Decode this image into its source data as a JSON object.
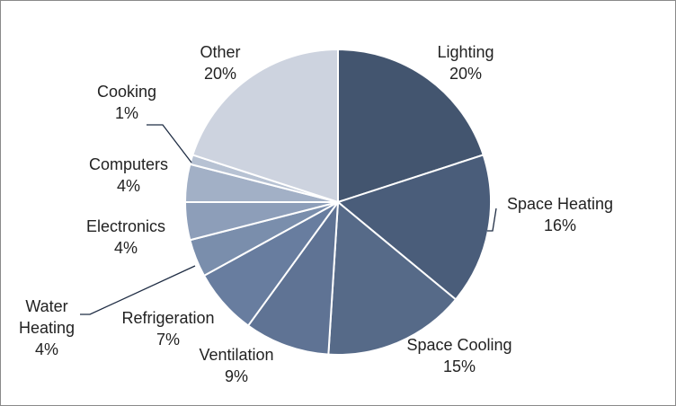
{
  "chart_data": {
    "type": "pie",
    "title": "",
    "slices": [
      {
        "name": "Lighting",
        "value": 20,
        "label": "20%",
        "color": "#43556f"
      },
      {
        "name": "Space Heating",
        "value": 16,
        "label": "16%",
        "color": "#4a5d7a"
      },
      {
        "name": "Space Cooling",
        "value": 15,
        "label": "15%",
        "color": "#566a88"
      },
      {
        "name": "Ventilation",
        "value": 9,
        "label": "9%",
        "color": "#5f7394"
      },
      {
        "name": "Refrigeration",
        "value": 7,
        "label": "7%",
        "color": "#687d9f"
      },
      {
        "name": "Water Heating",
        "value": 4,
        "label": "4%",
        "color": "#7a8eac"
      },
      {
        "name": "Electronics",
        "value": 4,
        "label": "4%",
        "color": "#8d9eb9"
      },
      {
        "name": "Computers",
        "value": 4,
        "label": "4%",
        "color": "#a2b0c6"
      },
      {
        "name": "Cooking",
        "value": 1,
        "label": "1%",
        "color": "#b7c2d3"
      },
      {
        "name": "Other",
        "value": 20,
        "label": "20%",
        "color": "#cdd3df"
      }
    ],
    "labels": [
      {
        "lines": [
          "Lighting",
          "20%"
        ]
      },
      {
        "lines": [
          "Space Heating",
          "16%"
        ]
      },
      {
        "lines": [
          "Space Cooling",
          "15%"
        ]
      },
      {
        "lines": [
          "Ventilation",
          "9%"
        ]
      },
      {
        "lines": [
          "Refrigeration",
          "7%"
        ]
      },
      {
        "lines": [
          "Water",
          "Heating",
          "4%"
        ]
      },
      {
        "lines": [
          "Electronics",
          "4%"
        ]
      },
      {
        "lines": [
          "Computers",
          "4%"
        ]
      },
      {
        "lines": [
          "Cooking",
          "1%"
        ]
      },
      {
        "lines": [
          "Other",
          "20%"
        ]
      }
    ],
    "legend": "none",
    "start_angle": "12 o'clock",
    "direction": "clockwise"
  }
}
